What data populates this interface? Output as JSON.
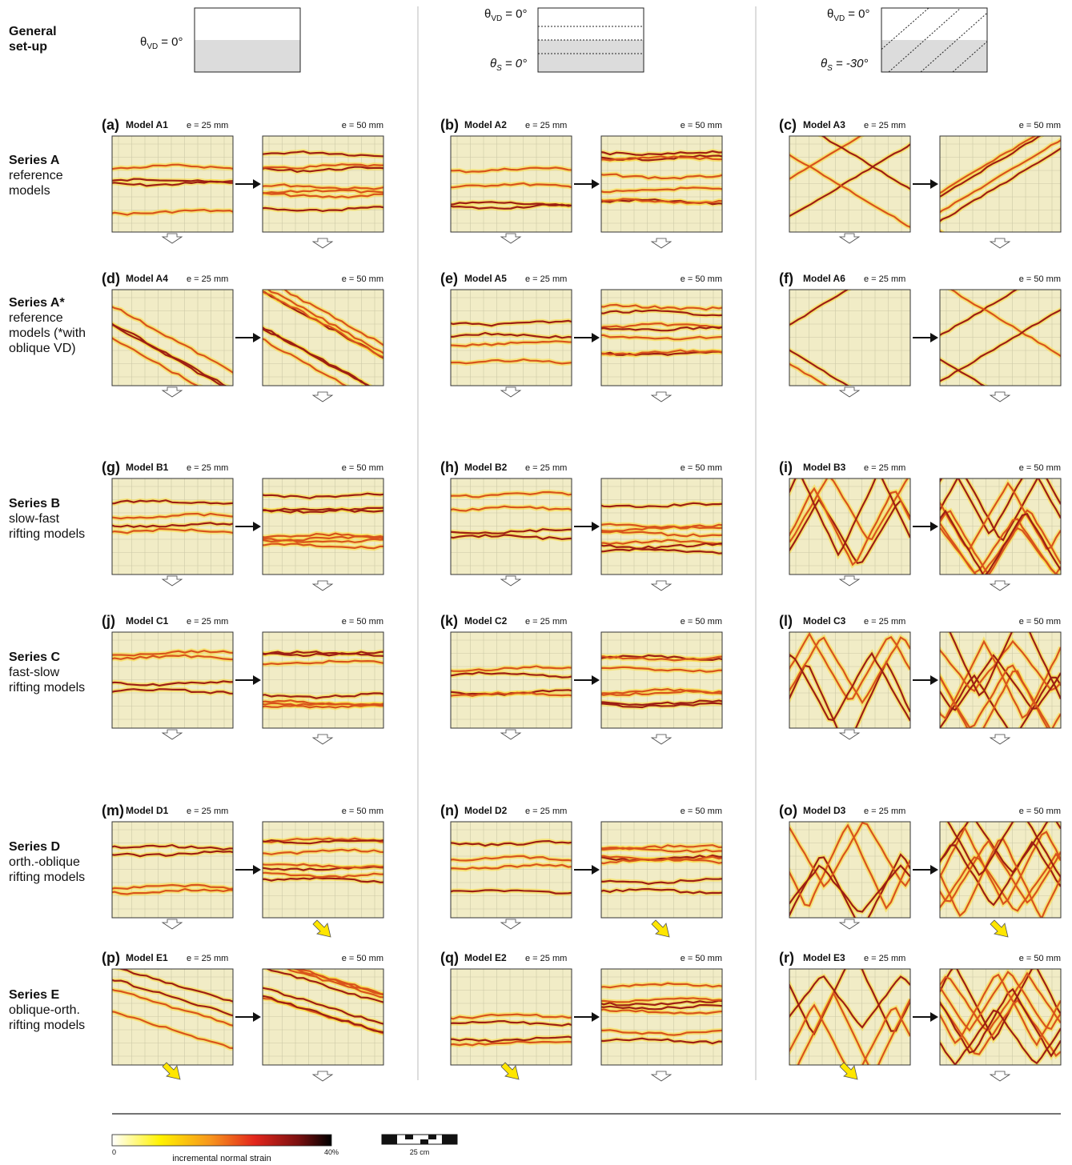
{
  "setup": {
    "label": [
      "General",
      "set-up"
    ],
    "columns": [
      {
        "vd": {
          "symbol": "θ",
          "sub": "VD",
          "value": "= 0°"
        }
      },
      {
        "vd": {
          "symbol": "θ",
          "sub": "VD",
          "value": "= 0°"
        },
        "s": {
          "symbol": "θ",
          "sub": "S",
          "value": "= 0°"
        }
      },
      {
        "vd": {
          "symbol": "θ",
          "sub": "VD",
          "value": "= 0°"
        },
        "s": {
          "symbol": "θ",
          "sub": "S",
          "value": "= -30°"
        }
      }
    ]
  },
  "rows": [
    {
      "label": [
        "Series A",
        "reference",
        "models"
      ],
      "panels": [
        {
          "letter": "(a)",
          "model": "Model A1",
          "e1": "e = 25 mm",
          "e2": "e = 50 mm"
        },
        {
          "letter": "(b)",
          "model": "Model A2",
          "e1": "e = 25 mm",
          "e2": "e = 50 mm"
        },
        {
          "letter": "(c)",
          "model": "Model A3",
          "e1": "e = 25 mm",
          "e2": "e = 50 mm"
        }
      ]
    },
    {
      "label": [
        "Series A*",
        "reference",
        "models (*with",
        "oblique VD)"
      ],
      "panels": [
        {
          "letter": "(d)",
          "model": "Model A4",
          "e1": "e = 25 mm",
          "e2": "e = 50 mm"
        },
        {
          "letter": "(e)",
          "model": "Model A5",
          "e1": "e = 25 mm",
          "e2": "e = 50 mm"
        },
        {
          "letter": "(f)",
          "model": "Model A6",
          "e1": "e = 25 mm",
          "e2": "e = 50 mm"
        }
      ]
    },
    {
      "label": [
        "Series B",
        "slow-fast",
        "rifting models"
      ],
      "panels": [
        {
          "letter": "(g)",
          "model": "Model B1",
          "e1": "e = 25 mm",
          "e2": "e = 50 mm"
        },
        {
          "letter": "(h)",
          "model": "Model B2",
          "e1": "e = 25 mm",
          "e2": "e = 50 mm"
        },
        {
          "letter": "(i)",
          "model": "Model B3",
          "e1": "e = 25 mm",
          "e2": "e = 50 mm"
        }
      ]
    },
    {
      "label": [
        "Series C",
        "fast-slow",
        "rifting models"
      ],
      "panels": [
        {
          "letter": "(j)",
          "model": "Model C1",
          "e1": "e = 25 mm",
          "e2": "e = 50 mm"
        },
        {
          "letter": "(k)",
          "model": "Model C2",
          "e1": "e = 25 mm",
          "e2": "e = 50 mm"
        },
        {
          "letter": "(l)",
          "model": "Model C3",
          "e1": "e = 25 mm",
          "e2": "e = 50 mm"
        }
      ]
    },
    {
      "label": [
        "Series D",
        "orth.-oblique",
        "rifting models"
      ],
      "panels": [
        {
          "letter": "(m)",
          "model": "Model D1",
          "e1": "e = 25 mm",
          "e2": "e = 50 mm"
        },
        {
          "letter": "(n)",
          "model": "Model D2",
          "e1": "e = 25 mm",
          "e2": "e = 50 mm"
        },
        {
          "letter": "(o)",
          "model": "Model D3",
          "e1": "e = 25 mm",
          "e2": "e = 50 mm"
        }
      ]
    },
    {
      "label": [
        "Series E",
        "oblique-orth.",
        "rifting models"
      ],
      "panels": [
        {
          "letter": "(p)",
          "model": "Model E1",
          "e1": "e = 25 mm",
          "e2": "e = 50 mm"
        },
        {
          "letter": "(q)",
          "model": "Model E2",
          "e1": "e = 25 mm",
          "e2": "e = 50 mm"
        },
        {
          "letter": "(r)",
          "model": "Model E3",
          "e1": "e = 25 mm",
          "e2": "e = 50 mm"
        }
      ]
    }
  ],
  "legend": {
    "min": "0",
    "max": "40%",
    "title": "incremental normal strain",
    "scale": "25 cm"
  }
}
